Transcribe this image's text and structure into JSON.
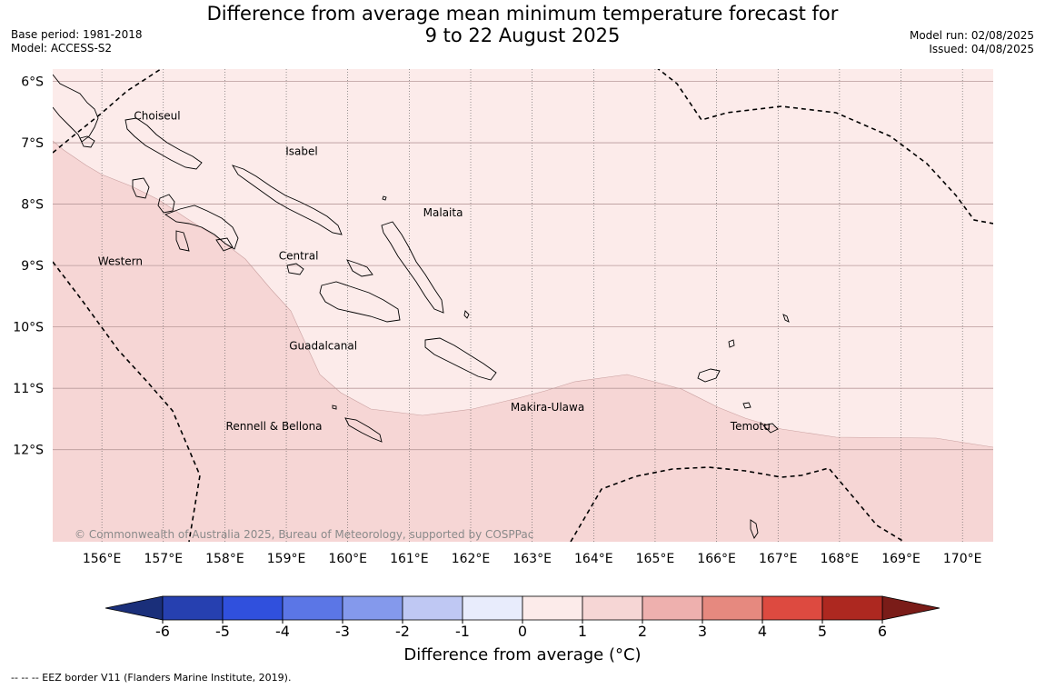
{
  "title": {
    "line1": "Difference from average mean minimum temperature forecast for",
    "line2": "9 to 22 August 2025"
  },
  "meta_left": [
    "Base period: 1981-2018",
    "Model: ACCESS-S2"
  ],
  "meta_right": [
    "Model run: 02/08/2025",
    "Issued: 04/08/2025"
  ],
  "map": {
    "lon_range": [
      155.2,
      170.5
    ],
    "lat_range": [
      -13.5,
      -5.8
    ],
    "lon_ticks": [
      156,
      157,
      158,
      159,
      160,
      161,
      162,
      163,
      164,
      165,
      166,
      167,
      168,
      169,
      170
    ],
    "lon_labels": [
      "156°E",
      "157°E",
      "158°E",
      "159°E",
      "160°E",
      "161°E",
      "162°E",
      "163°E",
      "164°E",
      "165°E",
      "166°E",
      "167°E",
      "168°E",
      "169°E",
      "170°E"
    ],
    "lat_ticks": [
      -6,
      -7,
      -8,
      -9,
      -10,
      -11,
      -12
    ],
    "lat_labels": [
      "6°S",
      "7°S",
      "8°S",
      "9°S",
      "10°S",
      "11°S",
      "12°S"
    ],
    "fill_0_1": "#fcebea",
    "fill_1_2": "#f6d6d5",
    "copyright": "© Commonwealth of Australia 2025, Bureau of Meteorology, supported by COSPPac",
    "provinces": [
      {
        "name": "Choiseul",
        "lon": 156.9,
        "lat": -6.62
      },
      {
        "name": "Isabel",
        "lon": 159.25,
        "lat": -7.2
      },
      {
        "name": "Malaita",
        "lon": 161.55,
        "lat": -8.2
      },
      {
        "name": "Western",
        "lon": 156.3,
        "lat": -8.99
      },
      {
        "name": "Central",
        "lon": 159.2,
        "lat": -8.9
      },
      {
        "name": "Guadalcanal",
        "lon": 159.6,
        "lat": -10.37
      },
      {
        "name": "Makira-Ulawa",
        "lon": 163.25,
        "lat": -11.37
      },
      {
        "name": "Rennell & Bellona",
        "lon": 158.8,
        "lat": -11.68
      },
      {
        "name": "Temotu",
        "lon": 166.55,
        "lat": -11.68
      }
    ]
  },
  "colorbar": {
    "ticks": [
      "-6",
      "-5",
      "-4",
      "-3",
      "-2",
      "-1",
      "0",
      "1",
      "2",
      "3",
      "4",
      "5",
      "6"
    ],
    "colors": [
      "#2640b0",
      "#3050dd",
      "#5b76e6",
      "#8499ec",
      "#bfc8f3",
      "#e8ecfc",
      "#fcebea",
      "#f6d6d5",
      "#eeb0ae",
      "#e6897f",
      "#dd4a40",
      "#ad2820"
    ],
    "under_color": "#1a2f7a",
    "over_color": "#7a1c18",
    "label": "Difference from average (°C)"
  },
  "footnote": "--  --  -- EEZ border V11 (Flanders Marine Institute, 2019)."
}
